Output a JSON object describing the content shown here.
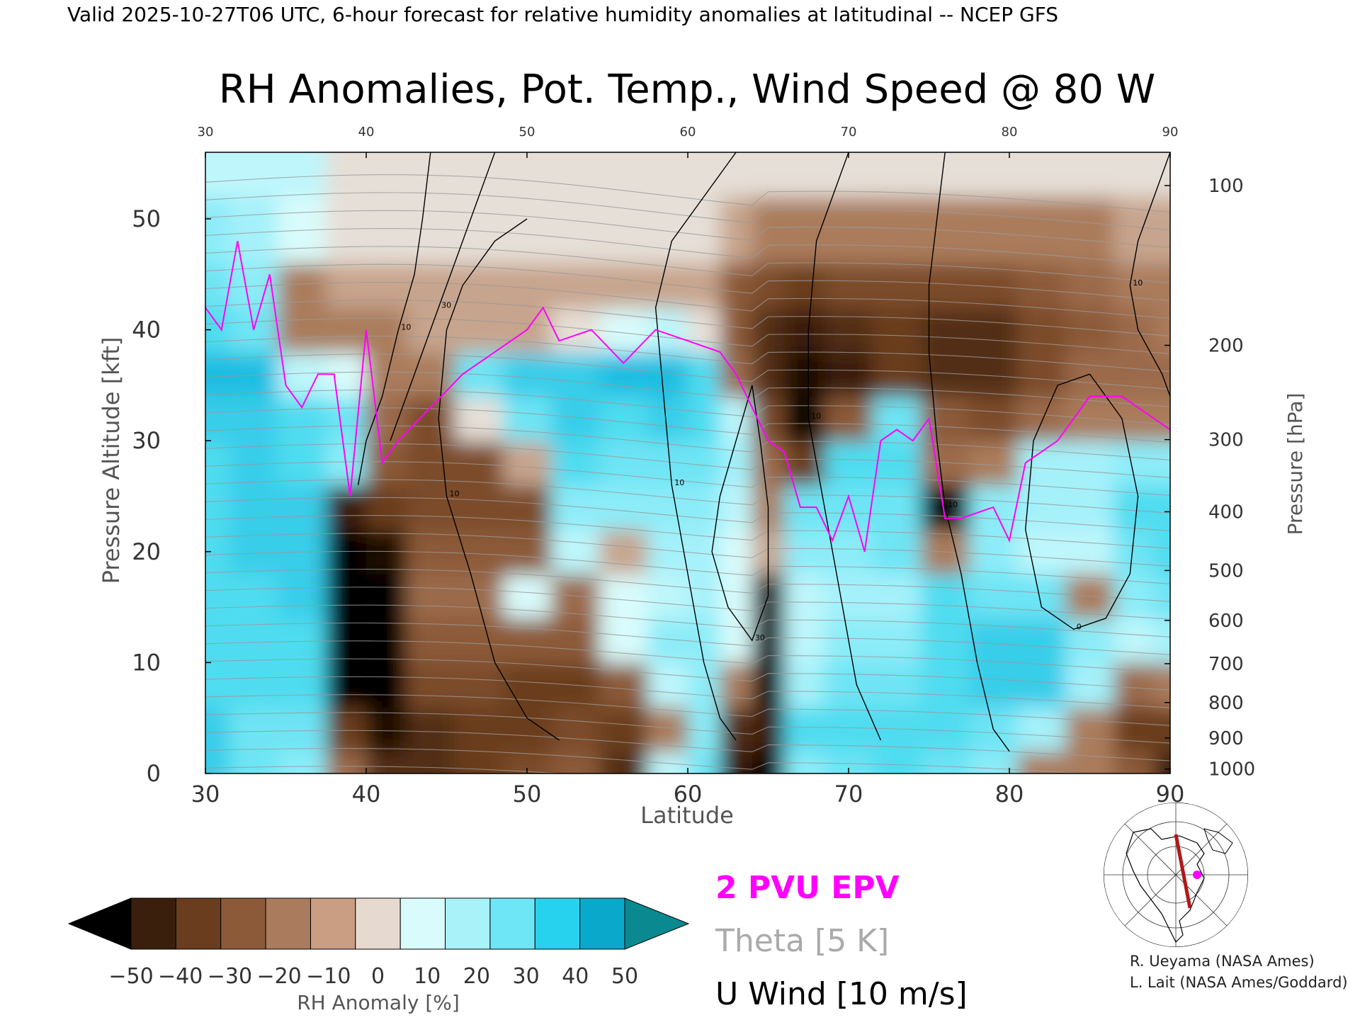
{
  "header": "Valid 2025-10-27T06 UTC, 6-hour forecast for relative humidity anomalies at latitudinal -- NCEP GFS",
  "chart_data": {
    "type": "heatmap",
    "title": "RH Anomalies, Pot. Temp., Wind Speed @ 80 W",
    "xlabel": "Latitude",
    "ylabel_left": "Pressure Altitude [kft]",
    "ylabel_right": "Pressure [hPa]",
    "xlim": [
      30,
      90
    ],
    "ylim": [
      0,
      56
    ],
    "x_ticks": [
      "30",
      "40",
      "50",
      "60",
      "70",
      "80",
      "90"
    ],
    "x_ticks_top": [
      "30",
      "40",
      "50",
      "60",
      "70",
      "80",
      "90"
    ],
    "y_ticks": [
      "0",
      "10",
      "20",
      "30",
      "40",
      "50"
    ],
    "pressure_ticks": [
      {
        "label": "100",
        "alt": 53
      },
      {
        "label": "200",
        "alt": 38.6
      },
      {
        "label": "300",
        "alt": 30.1
      },
      {
        "label": "400",
        "alt": 23.6
      },
      {
        "label": "500",
        "alt": 18.3
      },
      {
        "label": "600",
        "alt": 13.8
      },
      {
        "label": "700",
        "alt": 9.9
      },
      {
        "label": "800",
        "alt": 6.4
      },
      {
        "label": "900",
        "alt": 3.2
      },
      {
        "label": "1000",
        "alt": 0.4
      }
    ],
    "rh_anomaly_columns": [
      {
        "lat": 30,
        "rh": [
          35,
          35,
          30,
          30,
          30,
          30,
          30,
          30,
          35,
          40,
          30,
          25,
          20,
          10
        ]
      },
      {
        "lat": 33,
        "rh": [
          25,
          25,
          30,
          30,
          30,
          35,
          35,
          35,
          35,
          40,
          25,
          20,
          15,
          10
        ]
      },
      {
        "lat": 36,
        "rh": [
          20,
          25,
          30,
          30,
          35,
          35,
          35,
          30,
          30,
          10,
          -10,
          -10,
          5,
          10
        ]
      },
      {
        "lat": 39,
        "rh": [
          -15,
          -30,
          -50,
          -50,
          -50,
          -50,
          -40,
          20,
          25,
          5,
          -10,
          -5,
          0,
          0
        ]
      },
      {
        "lat": 41,
        "rh": [
          -35,
          -45,
          -50,
          -50,
          -50,
          -45,
          -30,
          -20,
          -15,
          -10,
          -10,
          -5,
          0,
          0
        ]
      },
      {
        "lat": 44,
        "rh": [
          -35,
          -35,
          -25,
          -20,
          -15,
          -20,
          -25,
          -25,
          -25,
          -10,
          -5,
          -5,
          0,
          0
        ]
      },
      {
        "lat": 47,
        "rh": [
          -30,
          -30,
          -25,
          -20,
          -15,
          -20,
          -25,
          -25,
          0,
          25,
          -5,
          -5,
          0,
          0
        ]
      },
      {
        "lat": 50,
        "rh": [
          -25,
          -30,
          -30,
          -20,
          5,
          -20,
          -25,
          -5,
          25,
          35,
          -5,
          -5,
          0,
          0
        ]
      },
      {
        "lat": 53,
        "rh": [
          -20,
          -25,
          -30,
          -20,
          -15,
          10,
          20,
          30,
          35,
          35,
          0,
          -5,
          0,
          0
        ]
      },
      {
        "lat": 56,
        "rh": [
          -35,
          -30,
          -20,
          5,
          5,
          -5,
          20,
          25,
          30,
          40,
          5,
          -5,
          0,
          0
        ]
      },
      {
        "lat": 59,
        "rh": [
          10,
          -10,
          10,
          20,
          10,
          15,
          20,
          25,
          35,
          40,
          10,
          -5,
          0,
          0
        ]
      },
      {
        "lat": 61,
        "rh": [
          25,
          20,
          20,
          20,
          15,
          15,
          20,
          25,
          30,
          30,
          0,
          -5,
          0,
          0
        ]
      },
      {
        "lat": 63,
        "rh": [
          -40,
          -35,
          -10,
          5,
          5,
          5,
          10,
          15,
          10,
          -15,
          -20,
          -20,
          -5,
          0
        ]
      },
      {
        "lat": 65,
        "rh": [
          -50,
          -40,
          -50,
          -50,
          -45,
          -5,
          -10,
          -15,
          -25,
          -35,
          -35,
          -25,
          -10,
          0
        ]
      },
      {
        "lat": 67,
        "rh": [
          20,
          30,
          15,
          10,
          10,
          20,
          25,
          -30,
          -50,
          -45,
          -40,
          -30,
          -10,
          0
        ]
      },
      {
        "lat": 70,
        "rh": [
          25,
          30,
          25,
          20,
          15,
          20,
          25,
          30,
          -20,
          -40,
          -35,
          -25,
          -10,
          0
        ]
      },
      {
        "lat": 73,
        "rh": [
          30,
          30,
          25,
          20,
          15,
          25,
          25,
          30,
          25,
          -30,
          -30,
          -25,
          -10,
          0
        ]
      },
      {
        "lat": 76,
        "rh": [
          25,
          30,
          30,
          30,
          30,
          -10,
          -50,
          -15,
          -20,
          -35,
          -35,
          -25,
          -10,
          0
        ]
      },
      {
        "lat": 79,
        "rh": [
          20,
          25,
          35,
          35,
          25,
          20,
          20,
          -10,
          -25,
          -35,
          -35,
          -25,
          -10,
          0
        ]
      },
      {
        "lat": 82,
        "rh": [
          -10,
          15,
          35,
          35,
          25,
          10,
          15,
          15,
          -15,
          -25,
          -25,
          -20,
          -10,
          0
        ]
      },
      {
        "lat": 85,
        "rh": [
          -10,
          -10,
          15,
          20,
          -10,
          10,
          15,
          15,
          -10,
          -15,
          -20,
          -15,
          -10,
          0
        ]
      },
      {
        "lat": 88,
        "rh": [
          -20,
          -30,
          -15,
          10,
          20,
          25,
          30,
          20,
          -10,
          -15,
          -15,
          -10,
          -5,
          0
        ]
      },
      {
        "lat": 90,
        "rh": [
          -40,
          -30,
          -10,
          15,
          25,
          30,
          30,
          20,
          -10,
          -15,
          -10,
          -10,
          -5,
          0
        ]
      }
    ],
    "rh_levels_kft": [
      0,
      4,
      8,
      12,
      16,
      20,
      24,
      28,
      32,
      36,
      40,
      44,
      48,
      56
    ],
    "epv_2pvu": {
      "name": "2 PVU EPV",
      "color": "#ff00ff",
      "points": [
        [
          30,
          42
        ],
        [
          31,
          40
        ],
        [
          32,
          48
        ],
        [
          33,
          40
        ],
        [
          34,
          45
        ],
        [
          35,
          35
        ],
        [
          36,
          33
        ],
        [
          37,
          36
        ],
        [
          38,
          36
        ],
        [
          39,
          25
        ],
        [
          40,
          40
        ],
        [
          41,
          28
        ],
        [
          42,
          30
        ],
        [
          44,
          33
        ],
        [
          46,
          36
        ],
        [
          48,
          38
        ],
        [
          50,
          40
        ],
        [
          51,
          42
        ],
        [
          52,
          39
        ],
        [
          54,
          40
        ],
        [
          56,
          37
        ],
        [
          58,
          40
        ],
        [
          60,
          39
        ],
        [
          62,
          38
        ],
        [
          63,
          36
        ],
        [
          64,
          33
        ],
        [
          65,
          30
        ],
        [
          66,
          29
        ],
        [
          67,
          24
        ],
        [
          68,
          24
        ],
        [
          69,
          21
        ],
        [
          70,
          25
        ],
        [
          71,
          20
        ],
        [
          72,
          30
        ],
        [
          73,
          31
        ],
        [
          74,
          30
        ],
        [
          75,
          32
        ],
        [
          76,
          23
        ],
        [
          77,
          23
        ],
        [
          79,
          24
        ],
        [
          80,
          21
        ],
        [
          81,
          28
        ],
        [
          83,
          30
        ],
        [
          85,
          34
        ],
        [
          87,
          34
        ],
        [
          89,
          32
        ],
        [
          90,
          31
        ]
      ]
    },
    "wind_contours": [
      {
        "label": "10",
        "points": [
          [
            44,
            56
          ],
          [
            43.5,
            50
          ],
          [
            43,
            45
          ],
          [
            42,
            40
          ],
          [
            41,
            34
          ],
          [
            40,
            30
          ],
          [
            39.5,
            26
          ]
        ]
      },
      {
        "label": "30",
        "points": [
          [
            41.5,
            30
          ],
          [
            43,
            36
          ],
          [
            44.5,
            42
          ],
          [
            46,
            48
          ],
          [
            48,
            56
          ]
        ]
      },
      {
        "label": "10",
        "points": [
          [
            50,
            50
          ],
          [
            48,
            48
          ],
          [
            46,
            44
          ],
          [
            45,
            40
          ],
          [
            44.5,
            32
          ],
          [
            45,
            25
          ],
          [
            46.5,
            18
          ],
          [
            48,
            10
          ],
          [
            50,
            5
          ],
          [
            52,
            3
          ]
        ]
      },
      {
        "label": "10",
        "points": [
          [
            63,
            56
          ],
          [
            61,
            52
          ],
          [
            59,
            48
          ],
          [
            58,
            42
          ],
          [
            58.5,
            34
          ],
          [
            59,
            26
          ],
          [
            60,
            18
          ],
          [
            61,
            10
          ],
          [
            62,
            5
          ],
          [
            63,
            3
          ]
        ]
      },
      {
        "label": "10",
        "points": [
          [
            70,
            56
          ],
          [
            69,
            52
          ],
          [
            68,
            48
          ],
          [
            67.5,
            40
          ],
          [
            67.5,
            32
          ],
          [
            68.5,
            24
          ],
          [
            69.5,
            16
          ],
          [
            70.5,
            8
          ],
          [
            72,
            3
          ]
        ]
      },
      {
        "label": "10",
        "points": [
          [
            76,
            56
          ],
          [
            75.5,
            50
          ],
          [
            75,
            44
          ],
          [
            75,
            38
          ],
          [
            75.5,
            30
          ],
          [
            76,
            24
          ],
          [
            77,
            18
          ],
          [
            78,
            10
          ],
          [
            79,
            4
          ],
          [
            80,
            2
          ]
        ]
      },
      {
        "label": "0",
        "points": [
          [
            85,
            36
          ],
          [
            87,
            32
          ],
          [
            88,
            25
          ],
          [
            87.5,
            18
          ],
          [
            86,
            14
          ],
          [
            84,
            13
          ],
          [
            82,
            15
          ],
          [
            81,
            22
          ],
          [
            81.5,
            30
          ],
          [
            83,
            35
          ],
          [
            85,
            36
          ]
        ]
      },
      {
        "label": "30",
        "points": [
          [
            64,
            35
          ],
          [
            63,
            30
          ],
          [
            62,
            25
          ],
          [
            61.5,
            20
          ],
          [
            62.5,
            15
          ],
          [
            64,
            12
          ],
          [
            65,
            16
          ],
          [
            65,
            24
          ],
          [
            64.5,
            30
          ],
          [
            64,
            35
          ]
        ]
      },
      {
        "label": "10",
        "points": [
          [
            90,
            56
          ],
          [
            89,
            52
          ],
          [
            88,
            48
          ],
          [
            87.5,
            44
          ],
          [
            88,
            40
          ],
          [
            89.5,
            36
          ],
          [
            90,
            34
          ]
        ]
      }
    ],
    "colorbar": {
      "label": "RH Anomaly [%]",
      "ticks": [
        "−50",
        "−40",
        "−30",
        "−20",
        "−10",
        "0",
        "10",
        "20",
        "30",
        "40",
        "50"
      ],
      "colors": [
        "#000000",
        "#3a1f0c",
        "#6a3d1f",
        "#8c5a39",
        "#aa7b5c",
        "#c99e83",
        "#e6d9cf",
        "#d9fbfb",
        "#a9f2fa",
        "#6ee6f6",
        "#27d2ef",
        "#0aa9cc",
        "#0a8a90"
      ]
    },
    "legend": [
      {
        "label": "2 PVU EPV",
        "color": "#ff00ff"
      },
      {
        "label": "Theta [5 K]",
        "color": "#aaaaaa"
      },
      {
        "label": "U Wind [10 m/s]",
        "color": "#000000"
      }
    ]
  },
  "credits": [
    "R. Ueyama (NASA Ames)",
    "L. Lait (NASA Ames/Goddard)"
  ]
}
